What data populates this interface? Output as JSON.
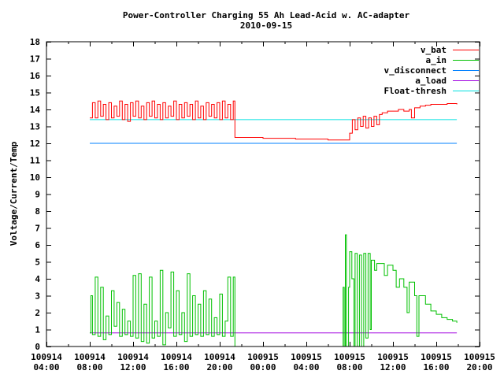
{
  "chart_data": {
    "type": "line",
    "title": "Power-Controller Charging 55 Ah Lead-Acid w. AC-adapter",
    "subtitle": "2010-09-15",
    "xlabel": "",
    "ylabel": "Voltage/Current/Temp",
    "x_unit": "hours since 100914 00:00",
    "xlim": [
      4,
      44
    ],
    "ylim": [
      0,
      18
    ],
    "y_ticks": [
      0,
      1,
      2,
      3,
      4,
      5,
      6,
      7,
      8,
      9,
      10,
      11,
      12,
      13,
      14,
      15,
      16,
      17,
      18
    ],
    "x_ticks": [
      {
        "value": 4,
        "date": "100914",
        "time": "04:00"
      },
      {
        "value": 8,
        "date": "100914",
        "time": "08:00"
      },
      {
        "value": 12,
        "date": "100914",
        "time": "12:00"
      },
      {
        "value": 16,
        "date": "100914",
        "time": "16:00"
      },
      {
        "value": 20,
        "date": "100914",
        "time": "20:00"
      },
      {
        "value": 24,
        "date": "100915",
        "time": "00:00"
      },
      {
        "value": 28,
        "date": "100915",
        "time": "04:00"
      },
      {
        "value": 32,
        "date": "100915",
        "time": "08:00"
      },
      {
        "value": 36,
        "date": "100915",
        "time": "12:00"
      },
      {
        "value": 40,
        "date": "100915",
        "time": "16:00"
      },
      {
        "value": 44,
        "date": "100915",
        "time": "20:00"
      }
    ],
    "legend_position": "top-right",
    "series": [
      {
        "name": "v_bat",
        "color": "#ff0000",
        "points": [
          [
            8,
            13.5
          ],
          [
            8.25,
            14.4
          ],
          [
            8.5,
            13.5
          ],
          [
            8.75,
            14.5
          ],
          [
            9,
            13.6
          ],
          [
            9.25,
            14.3
          ],
          [
            9.5,
            13.4
          ],
          [
            9.75,
            14.4
          ],
          [
            10,
            13.5
          ],
          [
            10.25,
            14.2
          ],
          [
            10.5,
            13.6
          ],
          [
            10.75,
            14.5
          ],
          [
            11,
            13.4
          ],
          [
            11.25,
            14.3
          ],
          [
            11.5,
            13.3
          ],
          [
            11.75,
            14.4
          ],
          [
            12,
            13.6
          ],
          [
            12.25,
            14.5
          ],
          [
            12.5,
            13.5
          ],
          [
            12.75,
            14.2
          ],
          [
            13,
            13.4
          ],
          [
            13.25,
            14.4
          ],
          [
            13.5,
            13.6
          ],
          [
            13.75,
            14.5
          ],
          [
            14,
            13.5
          ],
          [
            14.25,
            14.3
          ],
          [
            14.5,
            13.4
          ],
          [
            14.75,
            14.4
          ],
          [
            15,
            13.5
          ],
          [
            15.25,
            14.2
          ],
          [
            15.5,
            13.6
          ],
          [
            15.75,
            14.5
          ],
          [
            16,
            13.4
          ],
          [
            16.25,
            14.3
          ],
          [
            16.5,
            13.5
          ],
          [
            16.75,
            14.4
          ],
          [
            17,
            13.6
          ],
          [
            17.25,
            14.3
          ],
          [
            17.5,
            13.4
          ],
          [
            17.75,
            14.5
          ],
          [
            18,
            13.5
          ],
          [
            18.25,
            14.2
          ],
          [
            18.5,
            13.4
          ],
          [
            18.75,
            14.4
          ],
          [
            19,
            13.6
          ],
          [
            19.25,
            14.3
          ],
          [
            19.5,
            13.5
          ],
          [
            19.75,
            14.4
          ],
          [
            20,
            13.4
          ],
          [
            20.25,
            14.5
          ],
          [
            20.5,
            13.5
          ],
          [
            20.75,
            14.3
          ],
          [
            21,
            13.4
          ],
          [
            21.25,
            14.5
          ],
          [
            21.4,
            12.35
          ],
          [
            24,
            12.3
          ],
          [
            27,
            12.25
          ],
          [
            30,
            12.2
          ],
          [
            31.9,
            12.2
          ],
          [
            32,
            12.6
          ],
          [
            32.25,
            13.4
          ],
          [
            32.5,
            12.8
          ],
          [
            32.75,
            13.5
          ],
          [
            33,
            13.0
          ],
          [
            33.25,
            13.6
          ],
          [
            33.5,
            12.9
          ],
          [
            33.75,
            13.5
          ],
          [
            34,
            13.0
          ],
          [
            34.25,
            13.6
          ],
          [
            34.5,
            13.1
          ],
          [
            34.75,
            13.7
          ],
          [
            35,
            13.8
          ],
          [
            35.5,
            13.9
          ],
          [
            36,
            13.9
          ],
          [
            36.5,
            14.0
          ],
          [
            37,
            13.9
          ],
          [
            37.5,
            14.0
          ],
          [
            37.7,
            13.5
          ],
          [
            38,
            14.1
          ],
          [
            38.5,
            14.2
          ],
          [
            39,
            14.25
          ],
          [
            39.5,
            14.3
          ],
          [
            40,
            14.3
          ],
          [
            40.5,
            14.3
          ],
          [
            41,
            14.35
          ],
          [
            41.5,
            14.35
          ],
          [
            41.9,
            14.3
          ]
        ]
      },
      {
        "name": "a_in",
        "color": "#00c000",
        "points": [
          [
            8,
            0.8
          ],
          [
            8.1,
            3.0
          ],
          [
            8.25,
            0.7
          ],
          [
            8.5,
            4.1
          ],
          [
            8.75,
            0.6
          ],
          [
            9,
            3.5
          ],
          [
            9.25,
            0.4
          ],
          [
            9.5,
            1.8
          ],
          [
            9.75,
            0.7
          ],
          [
            10,
            3.3
          ],
          [
            10.25,
            1.2
          ],
          [
            10.5,
            2.6
          ],
          [
            10.75,
            0.6
          ],
          [
            11,
            2.2
          ],
          [
            11.25,
            0.7
          ],
          [
            11.5,
            1.5
          ],
          [
            11.75,
            0.6
          ],
          [
            12,
            4.2
          ],
          [
            12.25,
            0.5
          ],
          [
            12.5,
            4.3
          ],
          [
            12.75,
            0.3
          ],
          [
            13,
            2.5
          ],
          [
            13.25,
            0.2
          ],
          [
            13.5,
            4.1
          ],
          [
            13.75,
            0.5
          ],
          [
            14,
            1.5
          ],
          [
            14.25,
            0.6
          ],
          [
            14.5,
            4.5
          ],
          [
            14.75,
            0.1
          ],
          [
            15,
            2.0
          ],
          [
            15.25,
            1.1
          ],
          [
            15.5,
            4.4
          ],
          [
            15.75,
            0.6
          ],
          [
            16,
            3.3
          ],
          [
            16.25,
            0.7
          ],
          [
            16.5,
            2.0
          ],
          [
            16.75,
            0.3
          ],
          [
            17,
            4.3
          ],
          [
            17.25,
            0.6
          ],
          [
            17.5,
            3.0
          ],
          [
            17.75,
            0.7
          ],
          [
            18,
            2.5
          ],
          [
            18.25,
            0.6
          ],
          [
            18.5,
            3.3
          ],
          [
            18.75,
            0.7
          ],
          [
            19,
            2.8
          ],
          [
            19.25,
            0.6
          ],
          [
            19.5,
            1.7
          ],
          [
            19.75,
            0.7
          ],
          [
            20,
            3.1
          ],
          [
            20.25,
            0.6
          ],
          [
            20.5,
            1.5
          ],
          [
            20.75,
            4.1
          ],
          [
            21,
            0.6
          ],
          [
            21.25,
            4.1
          ],
          [
            21.4,
            0
          ],
          [
            31.3,
            0
          ],
          [
            31.4,
            3.5
          ],
          [
            31.5,
            0
          ],
          [
            31.6,
            6.6
          ],
          [
            31.7,
            0
          ],
          [
            31.9,
            3.5
          ],
          [
            32.0,
            5.6
          ],
          [
            32.2,
            4.0
          ],
          [
            32.4,
            0
          ],
          [
            32.5,
            5.5
          ],
          [
            32.7,
            0
          ],
          [
            32.9,
            5.4
          ],
          [
            33.1,
            0
          ],
          [
            33.3,
            5.5
          ],
          [
            33.5,
            0.5
          ],
          [
            33.7,
            5.5
          ],
          [
            33.9,
            1.0
          ],
          [
            34.0,
            5.1
          ],
          [
            34.3,
            4.5
          ],
          [
            34.5,
            4.9
          ],
          [
            35,
            4.9
          ],
          [
            35.2,
            4.2
          ],
          [
            35.5,
            4.8
          ],
          [
            36,
            4.5
          ],
          [
            36.3,
            3.5
          ],
          [
            36.6,
            4.0
          ],
          [
            37,
            3.5
          ],
          [
            37.3,
            2.0
          ],
          [
            37.5,
            3.8
          ],
          [
            38,
            3.0
          ],
          [
            38.2,
            0.6
          ],
          [
            38.4,
            3.0
          ],
          [
            39,
            2.5
          ],
          [
            39.5,
            2.1
          ],
          [
            40,
            1.9
          ],
          [
            40.5,
            1.7
          ],
          [
            41,
            1.6
          ],
          [
            41.5,
            1.5
          ],
          [
            41.9,
            1.4
          ]
        ]
      },
      {
        "name": "v_disconnect",
        "color": "#0080ff",
        "points": [
          [
            8,
            12.0
          ],
          [
            41.9,
            12.0
          ]
        ]
      },
      {
        "name": "a_load",
        "color": "#a000e0",
        "points": [
          [
            8,
            0.8
          ],
          [
            41.9,
            0.8
          ]
        ]
      },
      {
        "name": "Float-thresh",
        "color": "#00e0e0",
        "points": [
          [
            8,
            13.4
          ],
          [
            41.9,
            13.4
          ]
        ]
      }
    ]
  }
}
